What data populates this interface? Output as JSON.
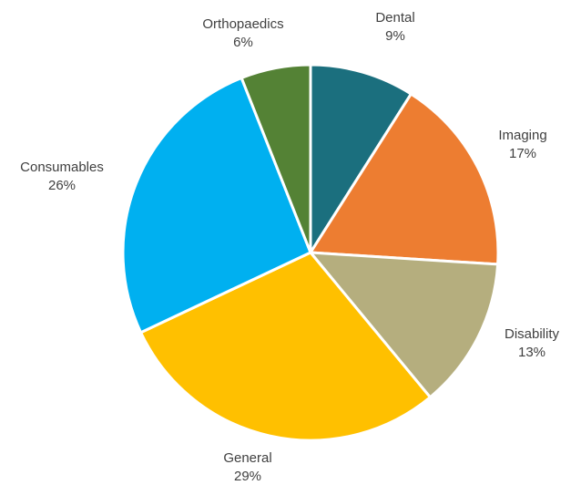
{
  "chart_data": {
    "type": "pie",
    "title": "",
    "start_angle_deg": 0,
    "direction": "clockwise",
    "legend": "none",
    "slices": [
      {
        "label": "Dental",
        "value": 9,
        "display": "9%",
        "color": "#1B6F7E"
      },
      {
        "label": "Imaging",
        "value": 17,
        "display": "17%",
        "color": "#ED7D31"
      },
      {
        "label": "Disability",
        "value": 13,
        "display": "13%",
        "color": "#B5AE7E"
      },
      {
        "label": "General",
        "value": 29,
        "display": "29%",
        "color": "#FFC000"
      },
      {
        "label": "Consumables",
        "value": 26,
        "display": "26%",
        "color": "#00B0F0"
      },
      {
        "label": "Orthopaedics",
        "value": 6,
        "display": "6%",
        "color": "#548235"
      }
    ]
  }
}
